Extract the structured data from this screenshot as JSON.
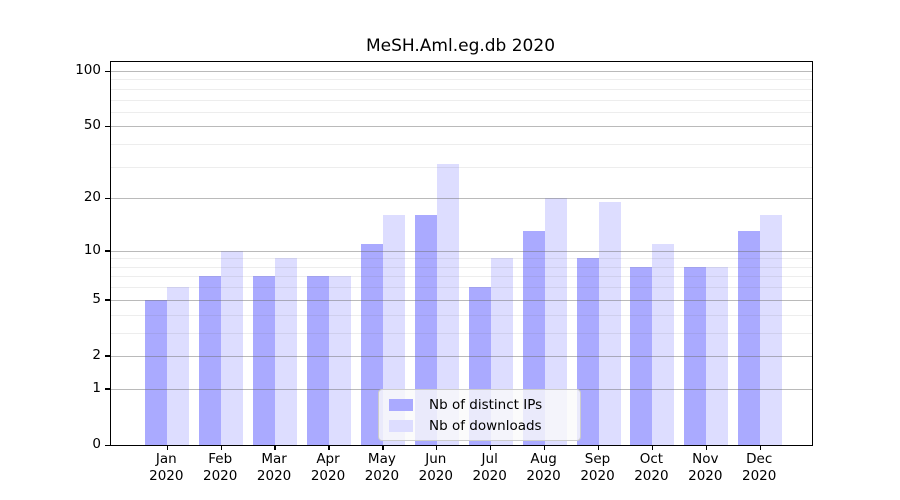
{
  "title": "MeSH.Aml.eg.db 2020",
  "chart_data": {
    "type": "bar",
    "title": "MeSH.Aml.eg.db 2020",
    "categories": [
      "Jan 2020",
      "Feb 2020",
      "Mar 2020",
      "Apr 2020",
      "May 2020",
      "Jun 2020",
      "Jul 2020",
      "Aug 2020",
      "Sep 2020",
      "Oct 2020",
      "Nov 2020",
      "Dec 2020"
    ],
    "series": [
      {
        "name": "Nb of distinct IPs",
        "color": "#aaaaff",
        "values": [
          5,
          7,
          7,
          7,
          11,
          16,
          6,
          13,
          9,
          8,
          8,
          13
        ]
      },
      {
        "name": "Nb of downloads",
        "color": "#ddddff",
        "values": [
          6,
          10,
          9,
          7,
          16,
          31,
          9,
          20,
          19,
          11,
          8,
          16
        ]
      }
    ],
    "xlabel": "",
    "ylabel": "",
    "y_scale": "log10(1+x)",
    "y_major_ticks": [
      0,
      1,
      2,
      5,
      10,
      20,
      50,
      100
    ],
    "y_minor_gridlines": [
      3,
      4,
      6,
      7,
      8,
      9,
      30,
      40,
      60,
      70,
      80,
      90
    ],
    "ylim": [
      0,
      112
    ],
    "grid": "on, drawn above bars",
    "legend_position": "inside lower-center",
    "bar_grouping": "paired, touching, one pair per month"
  },
  "legend": {
    "items": [
      {
        "label": "Nb of distinct IPs",
        "color": "#aaaaff"
      },
      {
        "label": "Nb of downloads",
        "color": "#ddddff"
      }
    ]
  },
  "colors": {
    "distinct_ips_bar": "#aaaaff",
    "downloads_bar": "#ddddff",
    "axis": "#000000",
    "major_grid": "#b9b9b9",
    "minor_grid": "#e9e9e9",
    "background": "#ffffff"
  }
}
